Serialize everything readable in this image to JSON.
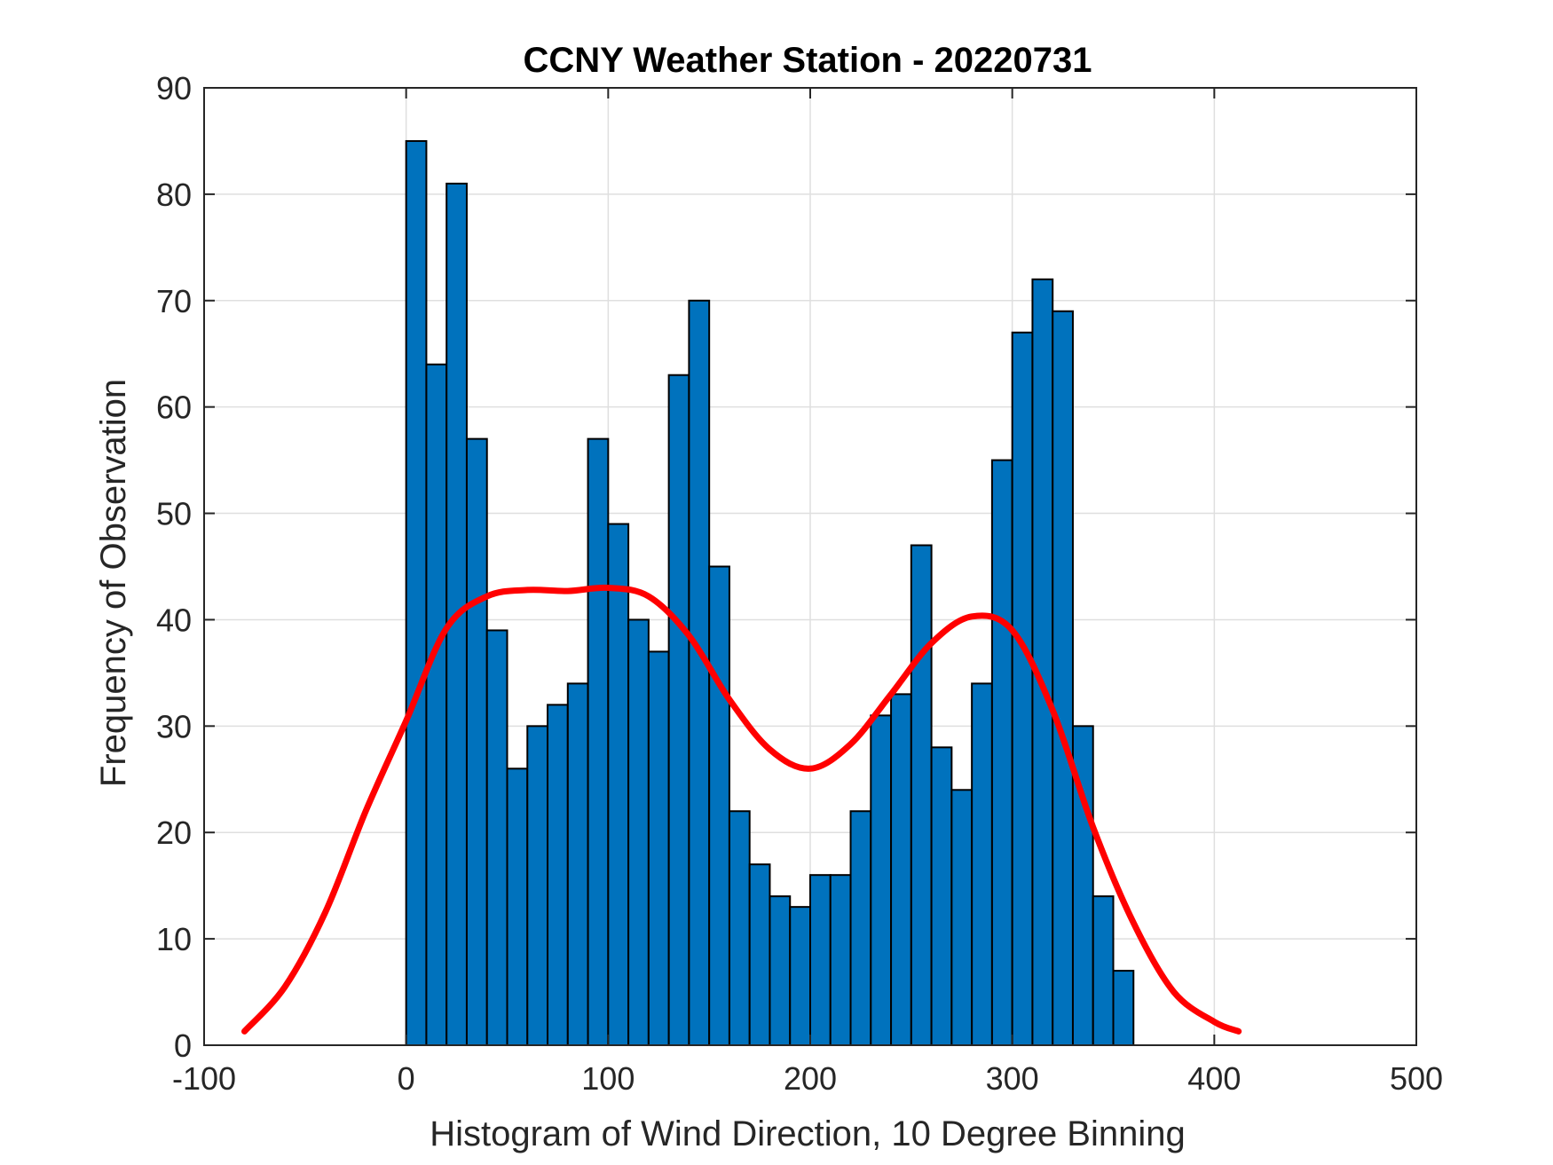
{
  "chart_data": {
    "type": "bar",
    "title": "CCNY Weather Station - 20220731",
    "xlabel": "Histogram of Wind Direction, 10 Degree Binning",
    "ylabel": "Frequency of Observation",
    "xlim": [
      -100,
      500
    ],
    "ylim": [
      0,
      90
    ],
    "xticks": [
      -100,
      0,
      100,
      200,
      300,
      400,
      500
    ],
    "yticks": [
      0,
      10,
      20,
      30,
      40,
      50,
      60,
      70,
      80,
      90
    ],
    "grid": true,
    "bin_width": 10,
    "bin_edges_start": 0,
    "values": [
      85,
      64,
      81,
      57,
      39,
      26,
      30,
      32,
      34,
      57,
      49,
      40,
      37,
      63,
      70,
      45,
      22,
      17,
      14,
      13,
      16,
      16,
      22,
      31,
      33,
      47,
      28,
      24,
      34,
      55,
      67,
      72,
      69,
      30,
      14,
      7
    ],
    "bar_color": "#0072BD",
    "fit_curve": {
      "name": "fit",
      "color": "#FF0000",
      "x": [
        -80,
        -60,
        -40,
        -20,
        0,
        20,
        40,
        60,
        80,
        100,
        120,
        140,
        160,
        180,
        200,
        220,
        240,
        260,
        280,
        300,
        320,
        340,
        360,
        380,
        400,
        412
      ],
      "y": [
        1.3,
        5.5,
        12.5,
        22,
        30.5,
        39.2,
        42.2,
        42.8,
        42.7,
        43.0,
        42.2,
        38.5,
        32.5,
        27.8,
        26.0,
        28.3,
        33,
        37.8,
        40.3,
        39,
        31.5,
        20.5,
        11.5,
        5.0,
        2.2,
        1.3
      ]
    }
  }
}
